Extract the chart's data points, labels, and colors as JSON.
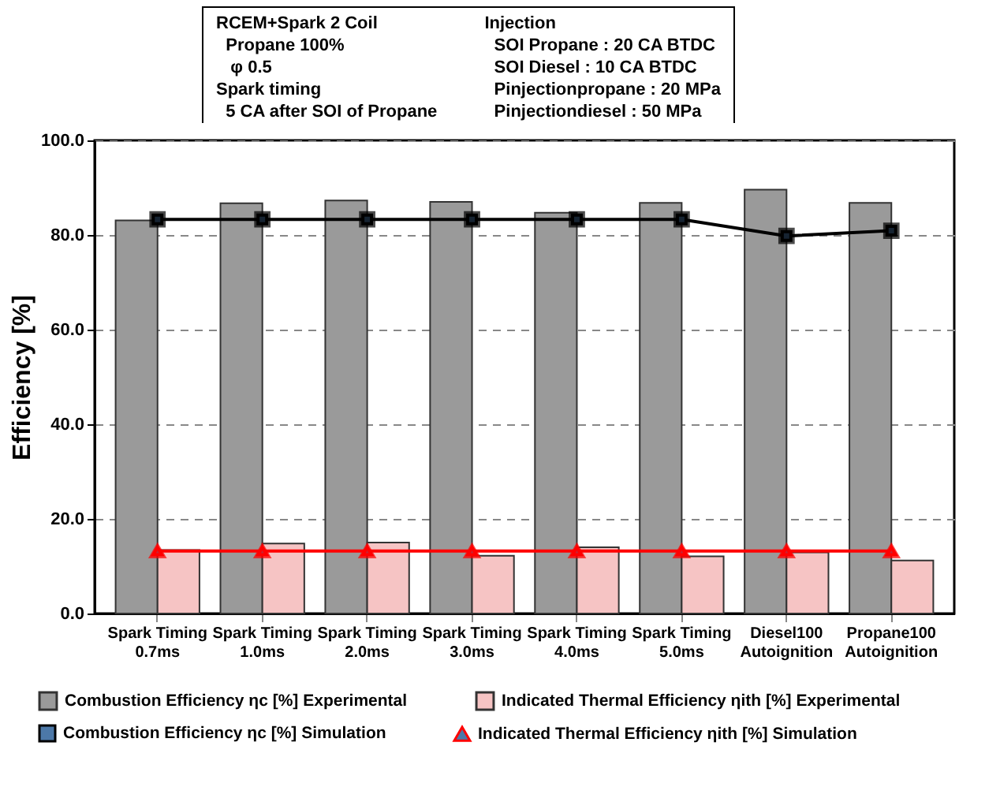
{
  "chart_data": {
    "type": "bar",
    "ylabel": "Efficiency [%]",
    "categories": [
      "Spark Timing\n0.7ms",
      "Spark Timing\n1.0ms",
      "Spark Timing\n2.0ms",
      "Spark Timing\n3.0ms",
      "Spark Timing\n4.0ms",
      "Spark Timing\n5.0ms",
      "Diesel100\nAutoignition",
      "Propane100\nAutoignition"
    ],
    "series": [
      {
        "name": "Combustion Efficiency ηc [%] Experimental",
        "color": "#9a9a9a",
        "values": [
          83.1,
          86.7,
          87.3,
          87.0,
          84.7,
          86.8,
          89.6,
          86.8
        ]
      },
      {
        "name": "Indicated Thermal Efficiency ηith [%] Experimental",
        "color": "#f6c4c4",
        "values": [
          13.4,
          14.8,
          15.0,
          12.2,
          14.0,
          12.1,
          12.9,
          11.2
        ]
      },
      {
        "name": "Combustion Efficiency ηc [%] Simulation",
        "type": "line",
        "color": "#000000",
        "marker": "square",
        "values": [
          83.3,
          83.3,
          83.3,
          83.3,
          83.3,
          83.3,
          79.8,
          80.9
        ]
      },
      {
        "name": "Indicated Thermal Efficiency ηith [%] Simulation",
        "type": "line",
        "color": "#ff0000",
        "marker": "triangle",
        "values": [
          13.2,
          13.2,
          13.2,
          13.2,
          13.2,
          13.2,
          13.2,
          13.2
        ]
      }
    ],
    "ylim": [
      0,
      100
    ],
    "yticks": [
      {
        "value": 0,
        "label": "0.0"
      },
      {
        "value": 20,
        "label": "20.0"
      },
      {
        "value": 40,
        "label": "40.0"
      },
      {
        "value": 60,
        "label": "60.0"
      },
      {
        "value": 80,
        "label": "80.0"
      },
      {
        "value": 100,
        "label": "100.0"
      }
    ],
    "grid": "y",
    "legend": "bottom",
    "annotations": [
      "RCEM+Spark 2 Coil",
      "  Propane 100%",
      "   φ 0.5",
      "Spark timing",
      "  5 CA after SOI of Propane",
      "Injection",
      "  SOI Propane : 20 CA BTDC",
      "  SOI Diesel : 10 CA BTDC",
      "  Pinjectionpropane : 20 MPa",
      "  Pinjectiondiesel : 50 MPa"
    ]
  }
}
